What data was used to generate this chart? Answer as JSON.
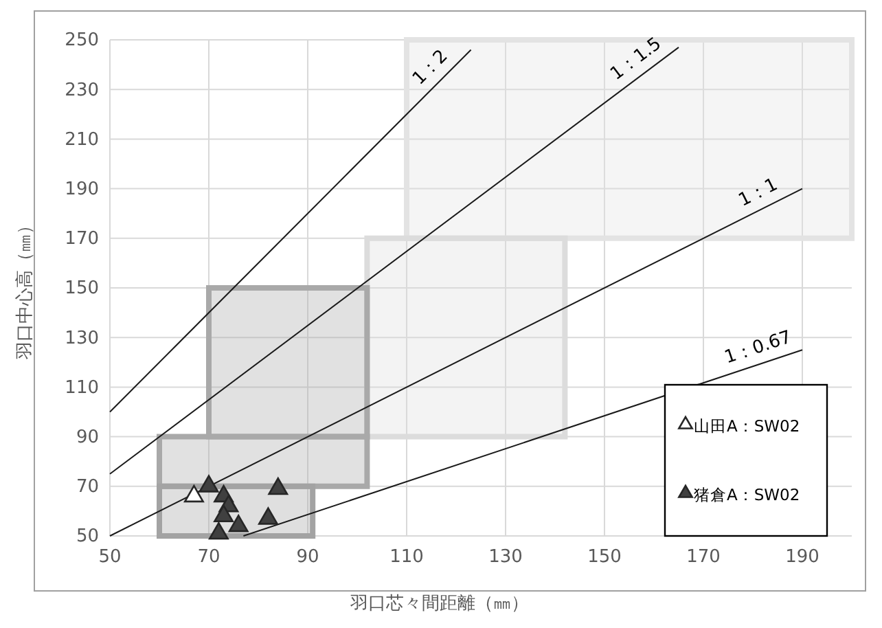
{
  "chart_data": {
    "type": "scatter",
    "xlabel": "羽口芯々間距離（㎜）",
    "ylabel": "羽口中心高（㎜）",
    "xlim": [
      50,
      200
    ],
    "xticks": [
      50,
      70,
      90,
      110,
      130,
      150,
      170,
      190
    ],
    "ylim": [
      50,
      250
    ],
    "yticks": [
      50,
      70,
      90,
      110,
      130,
      150,
      170,
      190,
      210,
      230,
      250
    ],
    "grid": true,
    "legend": "right",
    "line_style": "solid",
    "series": [
      {
        "type": "area",
        "color": "#e3e3e3",
        "x": [
          110,
          200,
          200,
          110,
          110
        ],
        "values": [
          170,
          170,
          250,
          250,
          170
        ]
      },
      {
        "type": "area",
        "color": "#dcdcdc",
        "x": [
          102,
          142,
          142,
          102,
          102
        ],
        "values": [
          90,
          90,
          170,
          170,
          90
        ]
      },
      {
        "type": "area",
        "color": "#a9a9a9",
        "x": [
          70,
          102,
          102,
          70,
          70
        ],
        "values": [
          90,
          90,
          150,
          150,
          90
        ]
      },
      {
        "type": "area",
        "color": "#a9a9a9",
        "x": [
          60,
          102,
          102,
          60,
          60
        ],
        "values": [
          70,
          70,
          90,
          90,
          70
        ]
      },
      {
        "type": "area",
        "color": "#a3a3a3",
        "x": [
          60,
          91,
          91,
          60,
          60
        ],
        "values": [
          50,
          50,
          70,
          70,
          50
        ]
      },
      {
        "type": "line",
        "name": "1：2",
        "color": "#1a1a1a",
        "x": [
          50,
          123
        ],
        "values": [
          100,
          246
        ]
      },
      {
        "type": "line",
        "name": "1：1.5",
        "color": "#1a1a1a",
        "x": [
          50,
          165
        ],
        "values": [
          75,
          247
        ]
      },
      {
        "type": "line",
        "name": "1：1",
        "color": "#1a1a1a",
        "x": [
          50,
          190
        ],
        "values": [
          50,
          190
        ]
      },
      {
        "type": "line",
        "name": "1：0.67",
        "color": "#1a1a1a",
        "x": [
          77,
          190
        ],
        "values": [
          50,
          125
        ]
      },
      {
        "name": "山田A：SW02",
        "color": "#ffffff",
        "marker": "triangle",
        "x": [
          67
        ],
        "values": [
          66
        ]
      },
      {
        "name": "猪倉A：SW02",
        "color": "#404040",
        "marker": "triangle",
        "x": [
          70,
          73,
          74,
          73,
          72,
          76,
          82,
          84
        ],
        "values": [
          70,
          66,
          62,
          58,
          51,
          54,
          57,
          69
        ]
      }
    ]
  }
}
